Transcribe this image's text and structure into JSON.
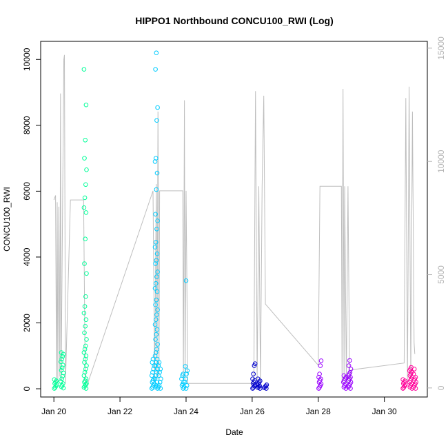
{
  "chart_data": {
    "type": "scatter",
    "title": "HIPPO1 Northbound CONCU100_RWI (Log)",
    "xlabel": "Date",
    "ylabel": "CONCU100_RWI",
    "x_ticks": [
      "Jan 20",
      "Jan 22",
      "Jan 24",
      "Jan 26",
      "Jan 28",
      "Jan 30"
    ],
    "y_ticks": [
      "0",
      "2000",
      "4000",
      "6000",
      "8000",
      "10000"
    ],
    "y2_ticks": [
      "0",
      "5000",
      "10000",
      "15000"
    ],
    "xlim_days_jan": [
      19.6,
      31.3
    ],
    "ylim": [
      -250,
      10550
    ],
    "y2lim": [
      -400,
      15300
    ],
    "grid": false,
    "legend": "none",
    "colors": {
      "flight1": "#00ff99",
      "flight2": "#00ccff",
      "flight3": "#0000cc",
      "flight4": "#9900ff",
      "flight5": "#ff0099",
      "secondary_line": "#bebebe",
      "right_axis": "#b3b3b3"
    },
    "series": [
      {
        "color_key": "flight1",
        "clusters": [
          {
            "x": 20.05,
            "y": [
              10,
              40,
              80,
              120,
              160,
              200,
              240,
              280
            ]
          },
          {
            "x": 20.25,
            "y": [
              20,
              60,
              100,
              160,
              220,
              300,
              380,
              480,
              560,
              640,
              720,
              820,
              900,
              980,
              1050,
              1100
            ]
          },
          {
            "x": 20.95,
            "y": [
              10,
              40,
              80,
              120,
              160,
              200,
              240,
              300,
              400,
              500,
              600,
              700,
              800,
              900,
              1000,
              1100,
              1200,
              1300,
              1500,
              1700,
              1900,
              2100,
              2300,
              2500,
              2800,
              3500,
              3800,
              4550,
              5350,
              5500,
              5800,
              6200,
              6650,
              7000,
              7550,
              8620,
              9700
            ]
          }
        ]
      },
      {
        "color_key": "flight2",
        "clusters": [
          {
            "x": 23.0,
            "y": [
              10,
              50,
              100,
              150,
              200,
              250,
              300,
              400,
              500,
              600,
              700,
              800,
              900
            ]
          },
          {
            "x": 23.1,
            "y": [
              10,
              50,
              100,
              200,
              300,
              400,
              500,
              600,
              700,
              800,
              900,
              1000,
              1100,
              1200,
              1350,
              1500,
              1650,
              1800,
              1950,
              2100,
              2250,
              2400,
              2550,
              2700,
              2950,
              3050,
              3200,
              3400,
              3550,
              3800,
              3900,
              4100,
              4300,
              4450,
              4850,
              5100,
              5300,
              6050,
              6550,
              6900,
              7000,
              8150,
              8540,
              9700,
              10200
            ]
          },
          {
            "x": 23.2,
            "y": [
              10,
              50,
              100,
              200,
              300,
              400,
              500,
              600,
              700,
              800
            ]
          },
          {
            "x": 23.9,
            "y": [
              10,
              50,
              100,
              150,
              200,
              300,
              400,
              450
            ]
          },
          {
            "x": 24.0,
            "y": [
              10,
              100,
              200,
              300,
              450,
              550,
              680,
              3280
            ]
          }
        ]
      },
      {
        "color_key": "flight3",
        "clusters": [
          {
            "x": 26.05,
            "y": [
              10,
              40,
              80,
              120,
              160,
              200,
              250,
              300,
              450,
              700,
              760
            ]
          },
          {
            "x": 26.2,
            "y": [
              10,
              30,
              60,
              90,
              120,
              160,
              200,
              240,
              300
            ]
          },
          {
            "x": 26.4,
            "y": [
              10,
              30,
              60,
              90,
              120
            ]
          }
        ]
      },
      {
        "color_key": "flight4",
        "clusters": [
          {
            "x": 28.05,
            "y": [
              10,
              50,
              100,
              150,
              200,
              250,
              300,
              350,
              450,
              700,
              850
            ]
          },
          {
            "x": 28.8,
            "y": [
              10,
              50,
              100,
              150,
              200,
              250,
              300,
              350,
              400
            ]
          },
          {
            "x": 28.95,
            "y": [
              10,
              50,
              100,
              150,
              200,
              250,
              300,
              350,
              400,
              450,
              500,
              600,
              700,
              860
            ]
          }
        ]
      },
      {
        "color_key": "flight5",
        "clusters": [
          {
            "x": 30.6,
            "y": [
              10,
              40,
              80,
              120,
              160,
              200,
              240,
              280
            ]
          },
          {
            "x": 30.8,
            "y": [
              10,
              50,
              100,
              150,
              200,
              250,
              300,
              350,
              400,
              450,
              500,
              550,
              600,
              650
            ]
          },
          {
            "x": 30.92,
            "y": [
              10,
              50,
              100,
              150,
              200,
              250,
              300,
              350,
              450,
              600
            ]
          }
        ]
      }
    ],
    "secondary_line": [
      {
        "x": 20.0,
        "y2": 8300
      },
      {
        "x": 20.05,
        "y2": 8500
      },
      {
        "x": 20.08,
        "y2": 200
      },
      {
        "x": 20.1,
        "y2": 8200
      },
      {
        "x": 20.12,
        "y2": 300
      },
      {
        "x": 20.15,
        "y2": 8000
      },
      {
        "x": 20.18,
        "y2": 500
      },
      {
        "x": 20.2,
        "y2": 13000
      },
      {
        "x": 20.22,
        "y2": 300
      },
      {
        "x": 20.3,
        "y2": 14500
      },
      {
        "x": 20.32,
        "y2": 14700
      },
      {
        "x": 20.35,
        "y2": 200
      },
      {
        "x": 20.5,
        "y2": 8300
      },
      {
        "x": 20.8,
        "y2": 8300
      },
      {
        "x": 20.9,
        "y2": 8300
      },
      {
        "x": 20.95,
        "y2": 200
      },
      {
        "x": 21.0,
        "y2": 100
      },
      {
        "x": 23.0,
        "y2": 8700
      },
      {
        "x": 23.05,
        "y2": 300
      },
      {
        "x": 23.1,
        "y2": 9000
      },
      {
        "x": 23.12,
        "y2": 400
      },
      {
        "x": 23.15,
        "y2": 12200
      },
      {
        "x": 23.18,
        "y2": 500
      },
      {
        "x": 23.2,
        "y2": 8700
      },
      {
        "x": 23.3,
        "y2": 8700
      },
      {
        "x": 23.9,
        "y2": 8700
      },
      {
        "x": 23.92,
        "y2": 400
      },
      {
        "x": 23.95,
        "y2": 12700
      },
      {
        "x": 23.97,
        "y2": 300
      },
      {
        "x": 24.0,
        "y2": 8700
      },
      {
        "x": 24.05,
        "y2": 200
      },
      {
        "x": 26.05,
        "y2": 200
      },
      {
        "x": 26.1,
        "y2": 13100
      },
      {
        "x": 26.15,
        "y2": 300
      },
      {
        "x": 26.2,
        "y2": 8900
      },
      {
        "x": 26.25,
        "y2": 200
      },
      {
        "x": 26.3,
        "y2": 8900
      },
      {
        "x": 26.35,
        "y2": 12900
      },
      {
        "x": 26.4,
        "y2": 3700
      },
      {
        "x": 28.0,
        "y2": 1000
      },
      {
        "x": 28.05,
        "y2": 8900
      },
      {
        "x": 28.5,
        "y2": 8900
      },
      {
        "x": 28.7,
        "y2": 8900
      },
      {
        "x": 28.72,
        "y2": 200
      },
      {
        "x": 28.75,
        "y2": 13200
      },
      {
        "x": 28.78,
        "y2": 300
      },
      {
        "x": 28.8,
        "y2": 8900
      },
      {
        "x": 28.85,
        "y2": 200
      },
      {
        "x": 28.9,
        "y2": 8900
      },
      {
        "x": 28.95,
        "y2": 200
      },
      {
        "x": 29.0,
        "y2": 800
      },
      {
        "x": 30.6,
        "y2": 1100
      },
      {
        "x": 30.65,
        "y2": 12800
      },
      {
        "x": 30.7,
        "y2": 300
      },
      {
        "x": 30.75,
        "y2": 13300
      },
      {
        "x": 30.8,
        "y2": 400
      },
      {
        "x": 30.85,
        "y2": 12200
      },
      {
        "x": 30.9,
        "y2": 2000
      },
      {
        "x": 30.92,
        "y2": 1500
      }
    ]
  }
}
